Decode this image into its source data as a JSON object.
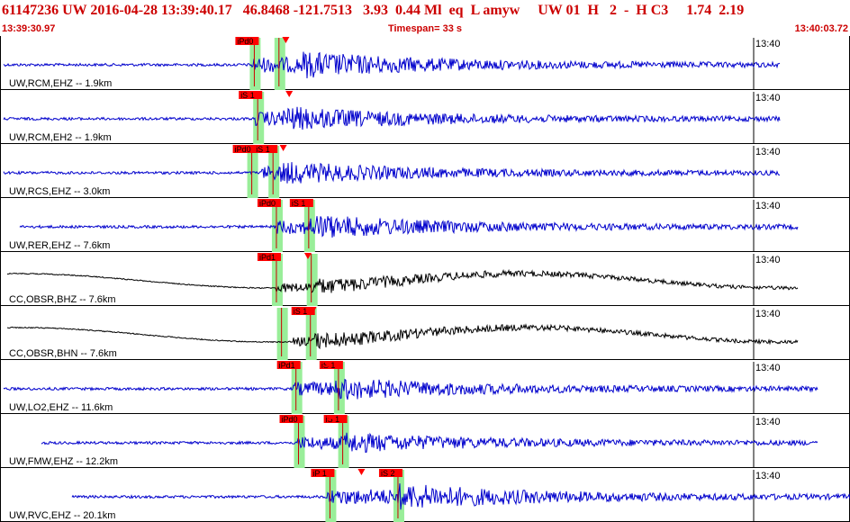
{
  "header": {
    "title": "61147236 UW 2016-04-28 13:39:40.17   46.8468 -121.7513   3.93  0.44 Ml  eq  L amyw     UW 01  H   2  -  H C3     1.74  2.19",
    "start_time": "13:39:30.97",
    "timespan_label": "Timespan=  33 s",
    "end_time": "13:40:03.72"
  },
  "colors": {
    "accent": "#cc0000",
    "trace_blue": "#0000cc",
    "trace_black": "#000000",
    "pick_green": "#99ee99",
    "pick_red": "#ff0000"
  },
  "panels": [
    {
      "label": "UW,RCM,EHZ -- 1.9km",
      "time_label": "13:40",
      "color": "blue",
      "amp": 0.55,
      "p": 0.296,
      "s": 0.355,
      "picks": [
        {
          "label": "iPd0",
          "pos": 0.296,
          "green": true
        },
        {
          "label": "",
          "pos": 0.325,
          "green": true
        }
      ]
    },
    {
      "label": "UW,RCM,EH2 -- 1.9km",
      "time_label": "13:40",
      "color": "blue",
      "amp": 0.5,
      "p": 0.3,
      "s": 0.333,
      "picks": [
        {
          "label": "iS 1",
          "pos": 0.3,
          "green": true
        }
      ]
    },
    {
      "label": "UW,RCS,EHZ -- 3.0km",
      "time_label": "13:40",
      "color": "blue",
      "amp": 0.45,
      "p": 0.308,
      "s": 0.33,
      "picks": [
        {
          "label": "iPd0",
          "pos": 0.293,
          "green": true
        },
        {
          "label": "iS 1",
          "pos": 0.318,
          "green": true
        }
      ]
    },
    {
      "label": "UW,RER,EHZ -- 7.6km",
      "time_label": "13:40",
      "color": "blue",
      "amp": 0.5,
      "p": 0.325,
      "s": 0.365,
      "picks": [
        {
          "label": "iPd0",
          "pos": 0.322,
          "green": true
        },
        {
          "label": "iS 1",
          "pos": 0.36,
          "green": true
        }
      ]
    },
    {
      "label": "CC,OBSR,BHZ -- 7.6km",
      "time_label": "13:40",
      "color": "black",
      "amp": 0.55,
      "p": 0.325,
      "s": 0.365,
      "picks": [
        {
          "label": "iPd1",
          "pos": 0.322,
          "green": true
        },
        {
          "label": "",
          "pos": 0.363,
          "green": true
        }
      ]
    },
    {
      "label": "CC,OBSR,BHN -- 7.6km",
      "time_label": "13:40",
      "color": "black",
      "amp": 0.55,
      "p": 0.345,
      "s": 0.37,
      "picks": [
        {
          "label": "",
          "pos": 0.328,
          "green": true
        },
        {
          "label": "iS 1",
          "pos": 0.362,
          "green": true
        }
      ]
    },
    {
      "label": "UW,LO2,EHZ -- 11.6km",
      "time_label": "13:40",
      "color": "blue",
      "amp": 0.45,
      "p": 0.345,
      "s": 0.395,
      "picks": [
        {
          "label": "iPd1",
          "pos": 0.345,
          "green": true
        },
        {
          "label": "iS 1",
          "pos": 0.395,
          "green": true
        }
      ]
    },
    {
      "label": "UW,FMW,EHZ -- 12.2km",
      "time_label": "13:40",
      "color": "blue",
      "amp": 0.4,
      "p": 0.35,
      "s": 0.405,
      "picks": [
        {
          "label": "iPd0",
          "pos": 0.348,
          "green": true
        },
        {
          "label": "iS 1",
          "pos": 0.4,
          "green": true
        }
      ]
    },
    {
      "label": "UW,RVC,EHZ -- 20.1km",
      "time_label": "13:40",
      "color": "blue",
      "amp": 0.55,
      "p": 0.385,
      "s": 0.47,
      "picks": [
        {
          "label": "iP 1",
          "pos": 0.385,
          "green": true
        },
        {
          "label": "iS 2",
          "pos": 0.465,
          "green": true
        }
      ]
    }
  ]
}
